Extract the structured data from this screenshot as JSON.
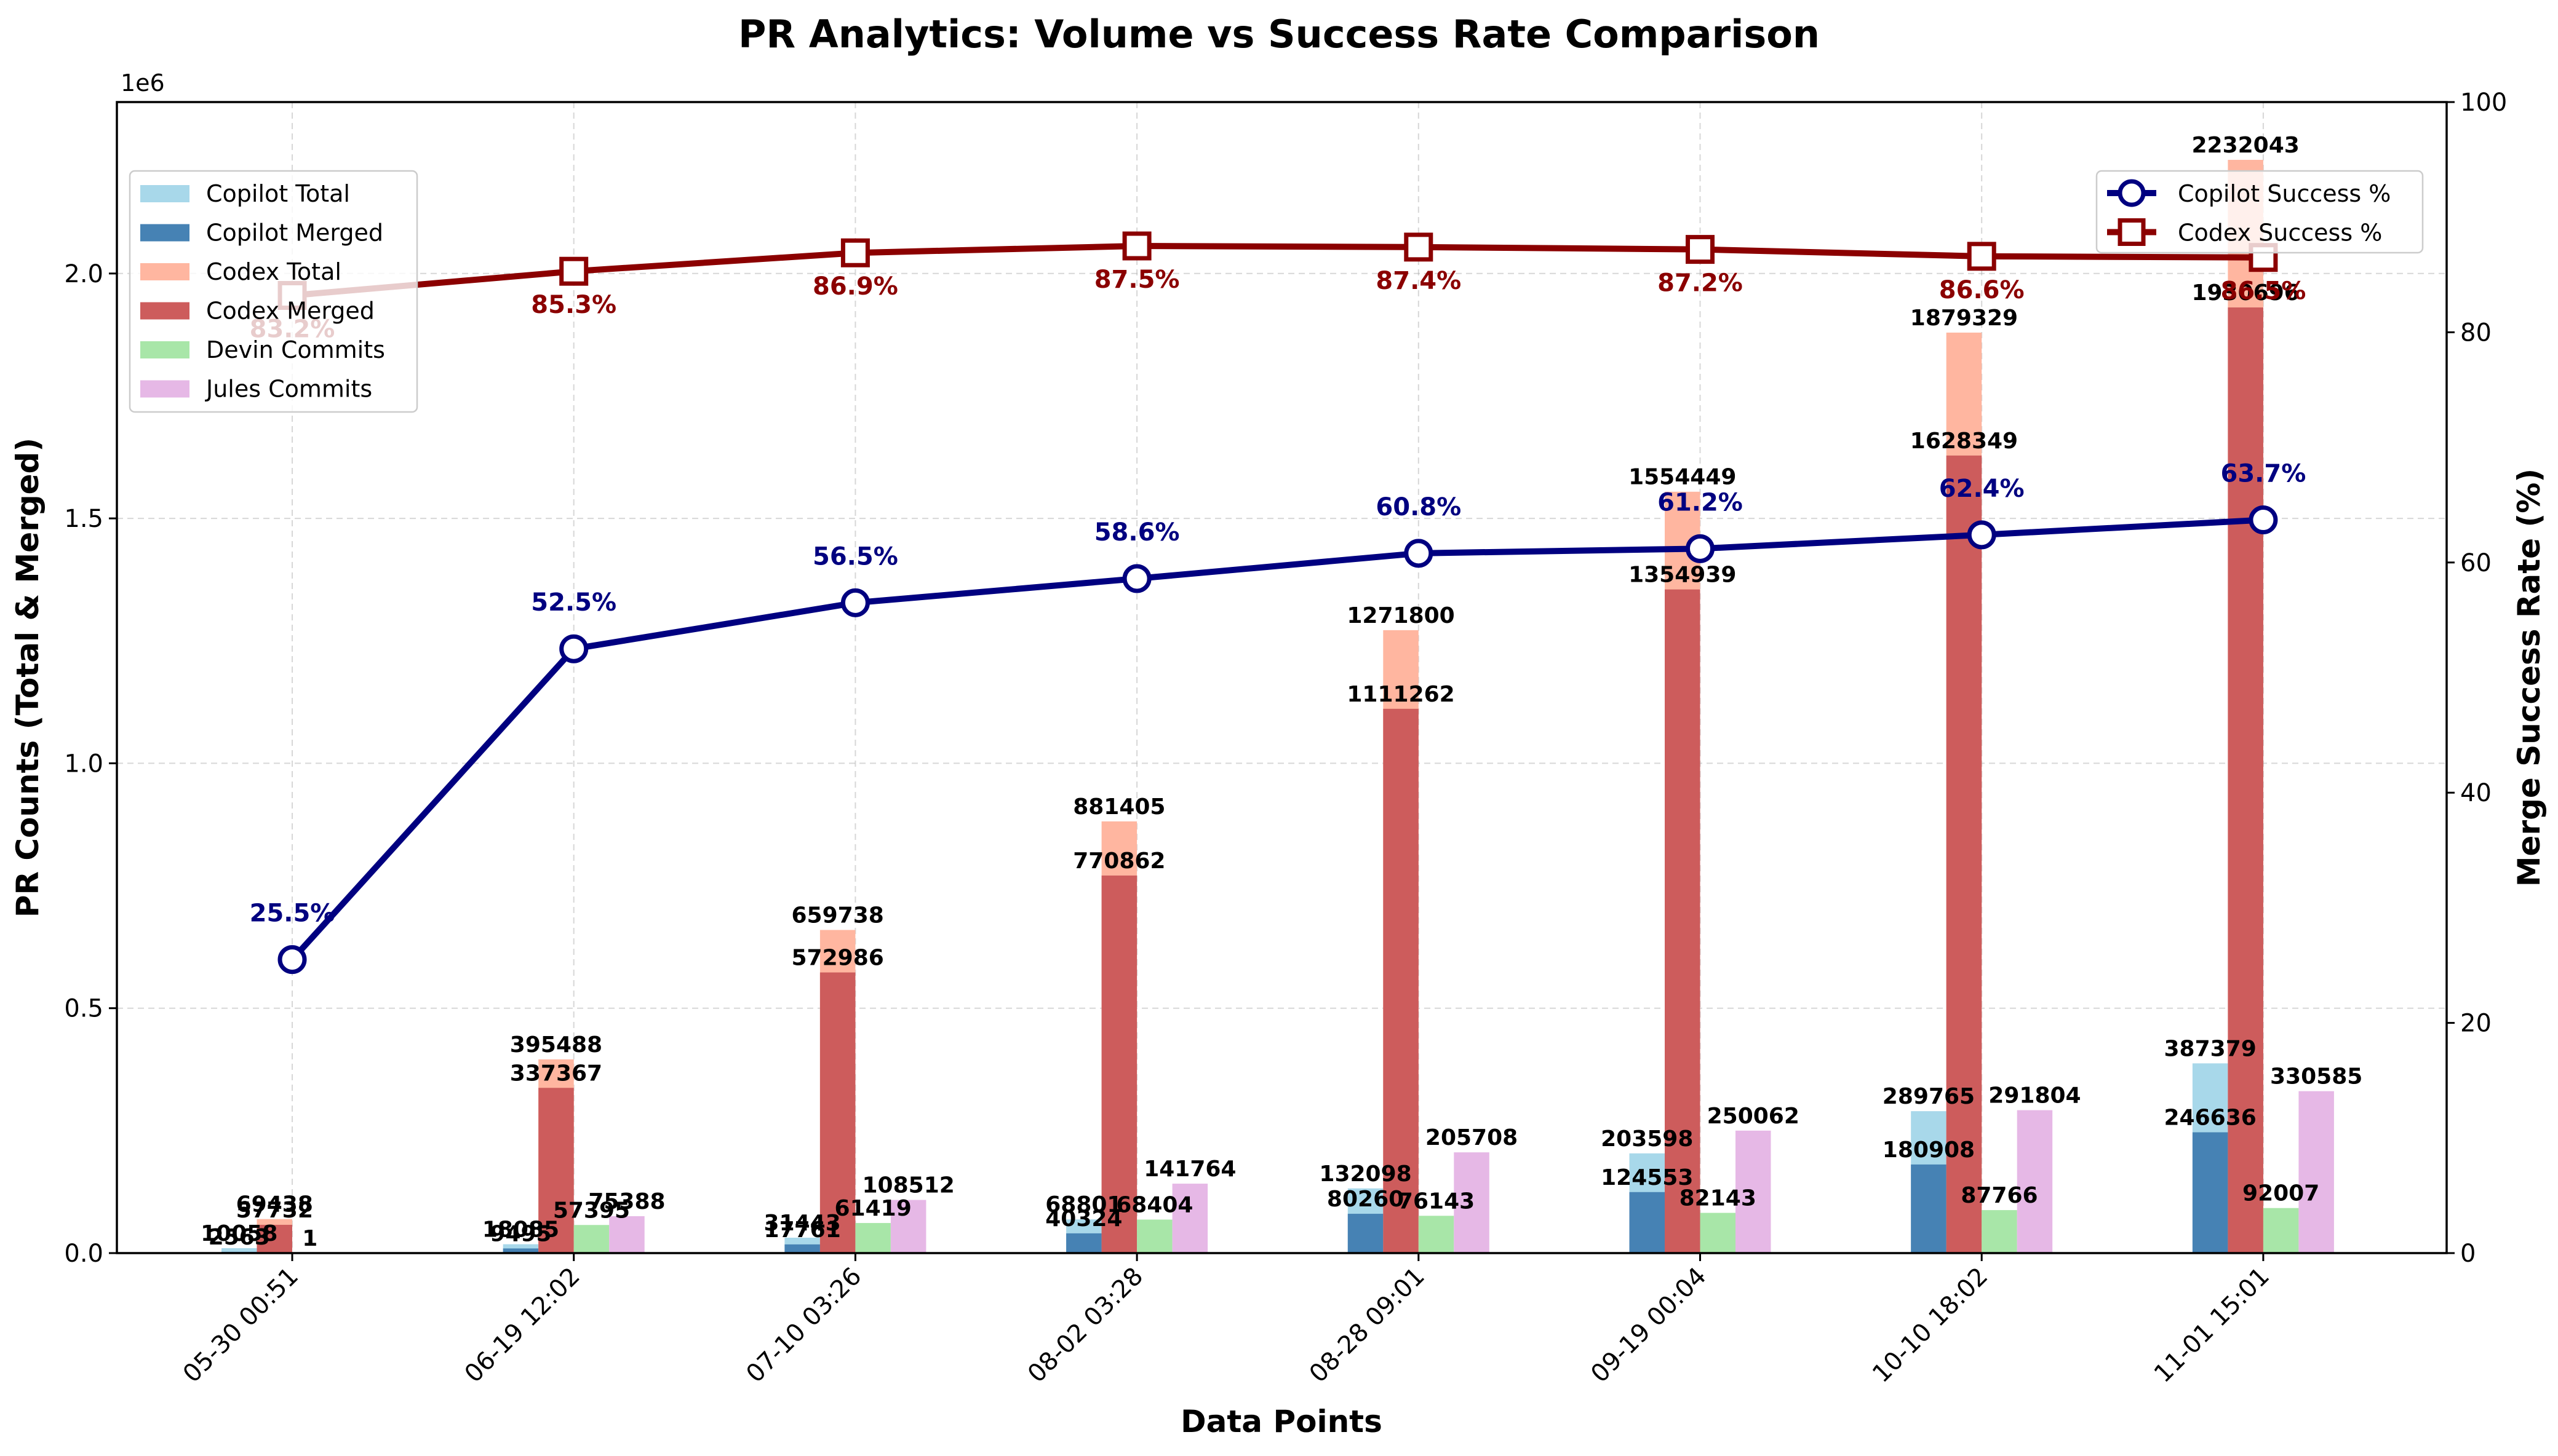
{
  "chart_data": {
    "type": "bar",
    "title": "PR Analytics: Volume vs Success Rate Comparison",
    "xlabel": "Data Points",
    "ylabel_left": "PR Counts (Total & Merged)",
    "ylabel_right": "Merge Success Rate (%)",
    "left_axis_multiplier": "1e6",
    "ylim_left": [
      0,
      2350000
    ],
    "ylim_right": [
      0,
      100
    ],
    "yticks_left": [
      0,
      500000,
      1000000,
      1500000,
      2000000
    ],
    "yticks_left_labels": [
      "0.0",
      "0.5",
      "1.0",
      "1.5",
      "2.0"
    ],
    "yticks_right": [
      0,
      20,
      40,
      60,
      80,
      100
    ],
    "grid": true,
    "categories": [
      "05-30 00:51",
      "06-19 12:02",
      "07-10 03:26",
      "08-02 03:28",
      "08-28 09:01",
      "09-19 00:04",
      "10-10 18:02",
      "11-01 15:01"
    ],
    "bar_series": [
      {
        "name": "Copilot Total",
        "color": "#a8d8ea",
        "slot": 0,
        "values": [
          10058,
          18085,
          31443,
          68801,
          132098,
          203598,
          289765,
          387379
        ]
      },
      {
        "name": "Copilot Merged",
        "color": "#4682b4",
        "slot": 0,
        "values": [
          2563,
          9495,
          17761,
          40324,
          80260,
          124553,
          180908,
          246636
        ]
      },
      {
        "name": "Codex Total",
        "color": "#ffb6a0",
        "slot": 1,
        "values": [
          69438,
          395488,
          659738,
          881405,
          1271800,
          1554449,
          1879329,
          2232043
        ]
      },
      {
        "name": "Codex Merged",
        "color": "#cd5c5c",
        "slot": 1,
        "values": [
          57732,
          337367,
          572986,
          770862,
          1111262,
          1354939,
          1628349,
          1930696
        ]
      },
      {
        "name": "Devin Commits",
        "color": "#a8e6a8",
        "slot": 2,
        "values": [
          1,
          57395,
          61419,
          68404,
          76143,
          82143,
          87766,
          92007
        ]
      },
      {
        "name": "Jules Commits",
        "color": "#e6b8e6",
        "slot": 3,
        "values": [
          0,
          75388,
          108512,
          141764,
          205708,
          250062,
          291804,
          330585
        ]
      }
    ],
    "line_series": [
      {
        "name": "Copilot Success %",
        "color": "#000080",
        "marker": "circle",
        "values": [
          25.5,
          52.5,
          56.5,
          58.6,
          60.8,
          61.2,
          62.4,
          63.7
        ],
        "labels": [
          "25.5%",
          "52.5%",
          "56.5%",
          "58.6%",
          "60.8%",
          "61.2%",
          "62.4%",
          "63.7%"
        ]
      },
      {
        "name": "Codex Success %",
        "color": "#8b0000",
        "marker": "square",
        "values": [
          83.2,
          85.3,
          86.9,
          87.5,
          87.4,
          87.2,
          86.6,
          86.5
        ],
        "labels": [
          "83.2%",
          "85.3%",
          "86.9%",
          "87.5%",
          "87.4%",
          "87.2%",
          "86.6%",
          "86.5%"
        ]
      }
    ],
    "legend_bars_placement": "upper-left",
    "legend_lines_placement": "upper-right"
  }
}
